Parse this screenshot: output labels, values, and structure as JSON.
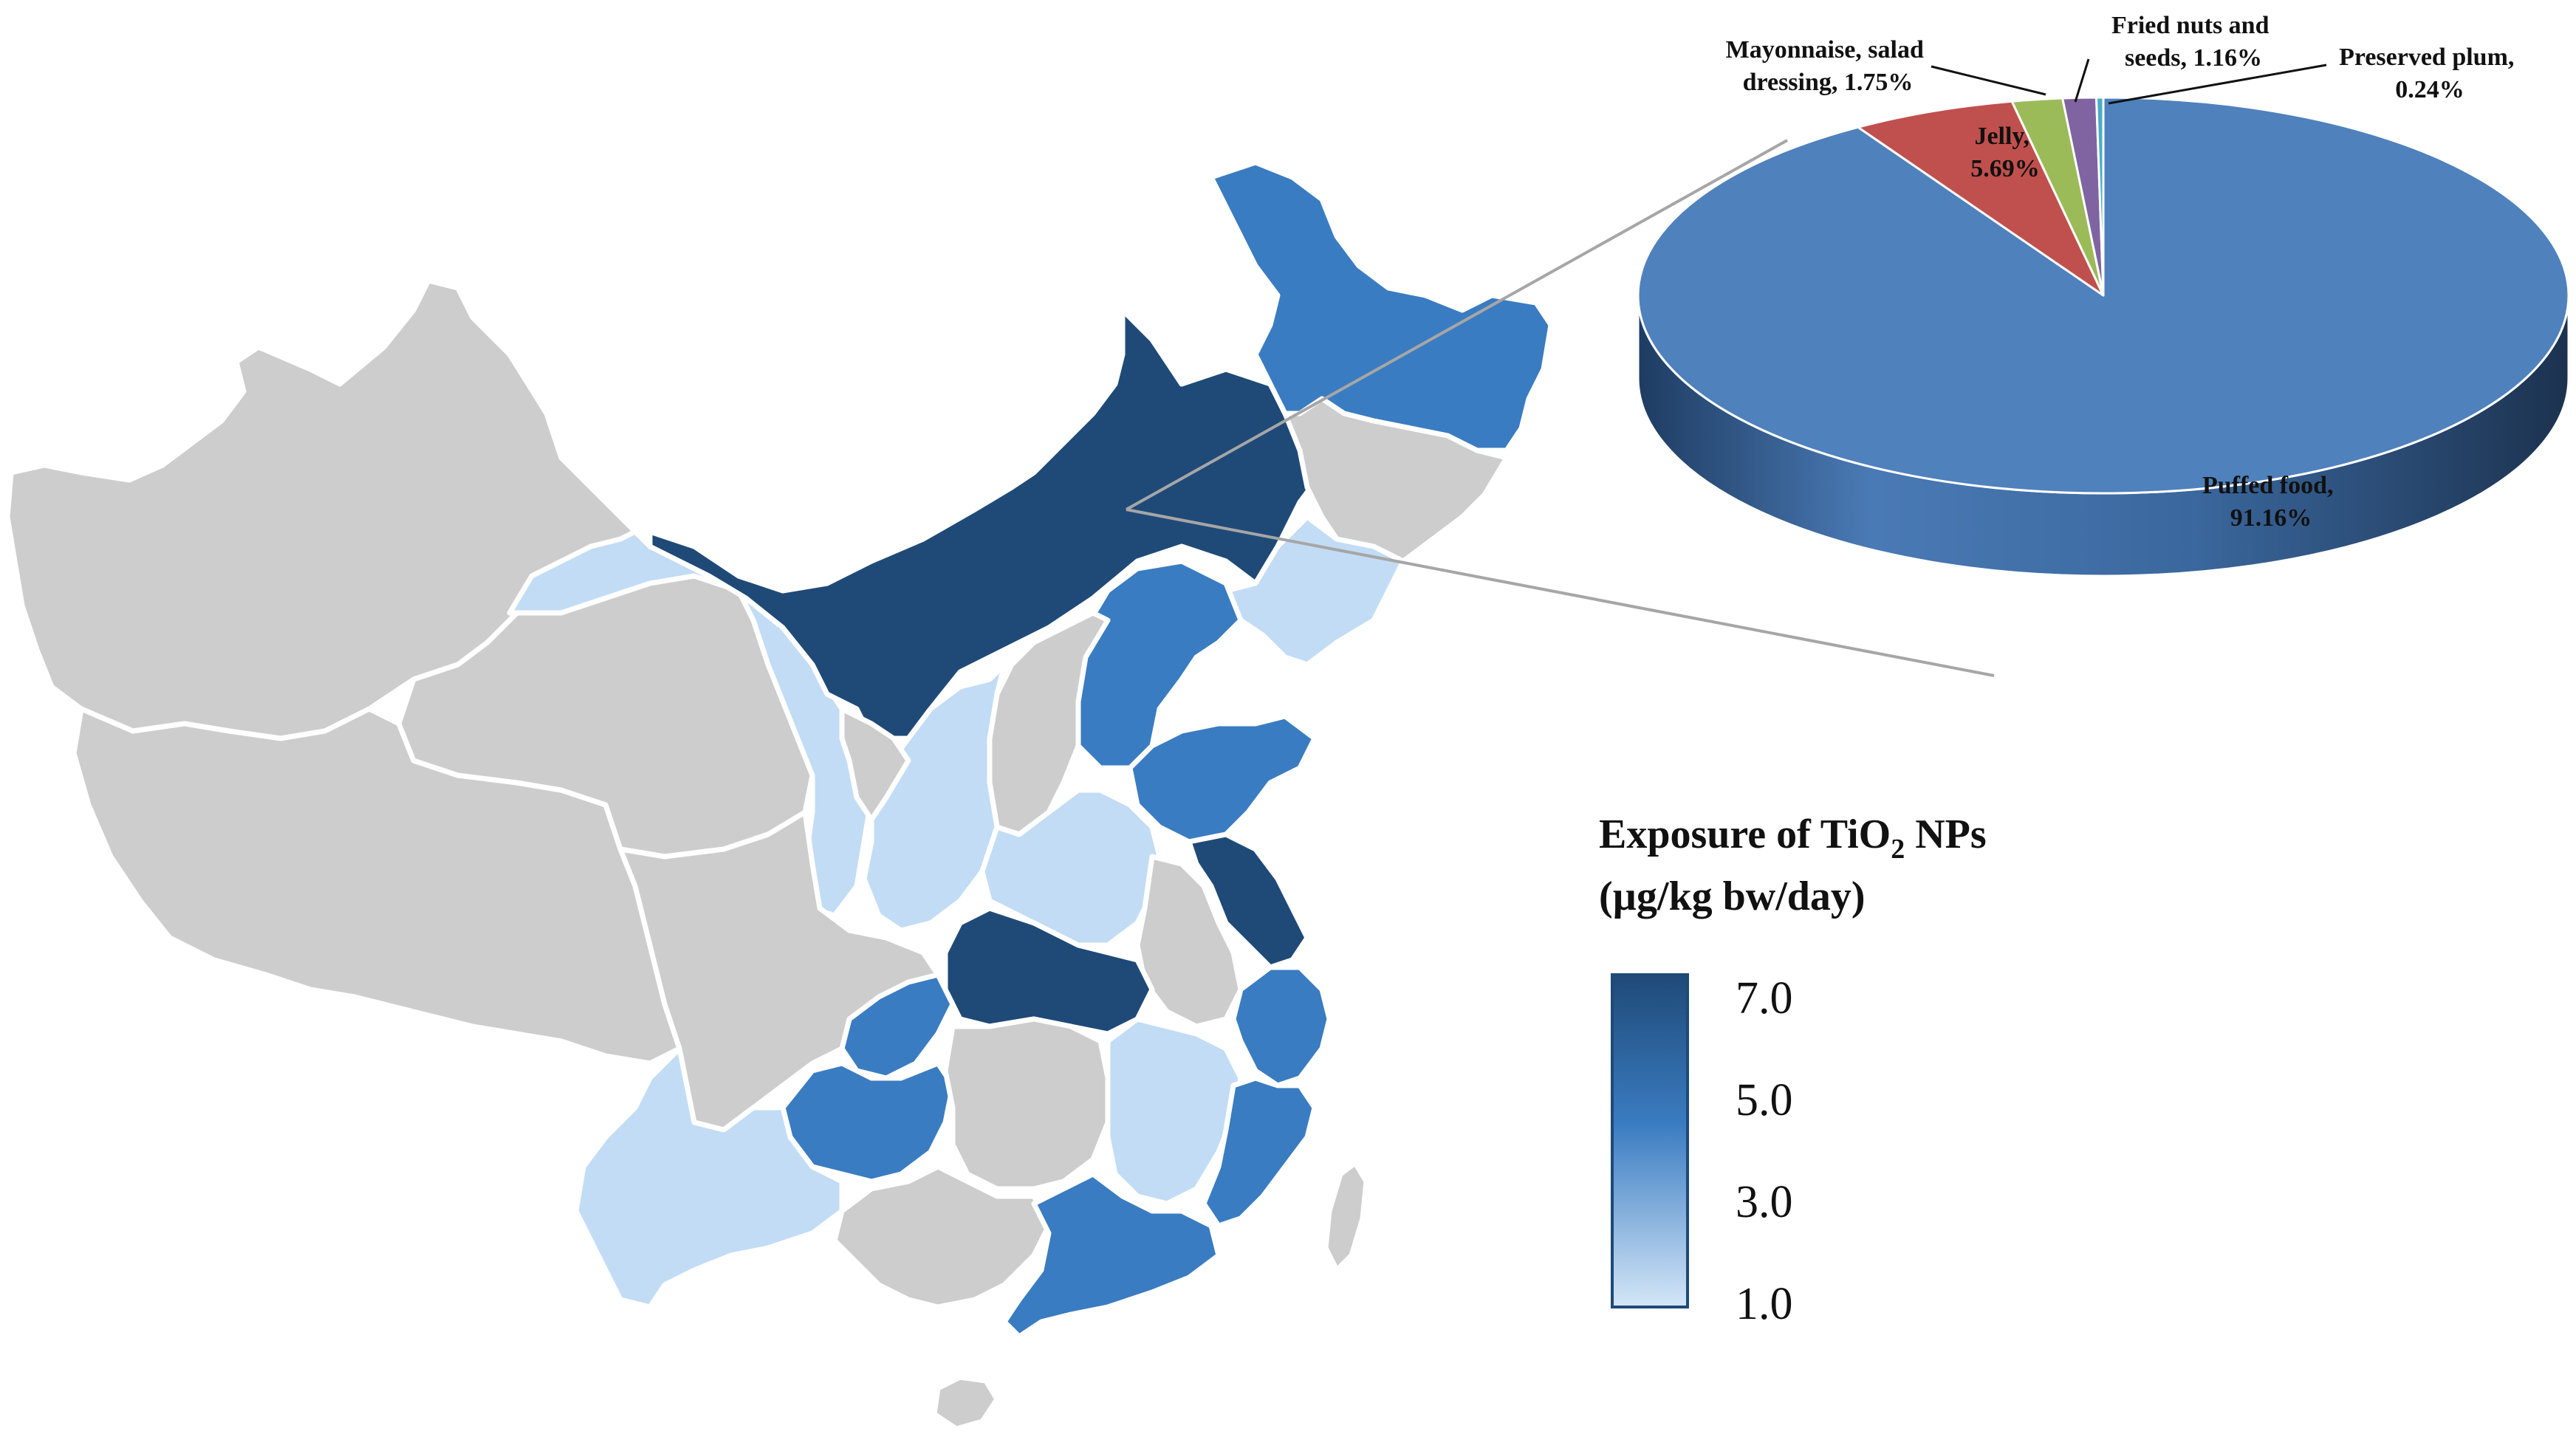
{
  "legend": {
    "title_line1_pre": "Exposure of TiO",
    "title_sub": "2",
    "title_line1_post": " NPs",
    "title_line2": "(µg/kg bw/day)",
    "ticks": [
      "7.0",
      "5.0",
      "3.0",
      "1.0"
    ],
    "colors": {
      "high": "#1f4a78",
      "mid": "#3a7cc1",
      "low": "#c2dcf5",
      "nodata": "#cdcdcd",
      "border": "#ffffff"
    }
  },
  "pie": {
    "slices": [
      {
        "name_l1": "Puffed food,",
        "name_l2": "91.16%",
        "value": 91.16,
        "color": "#4f81bd",
        "side": "#2a4d78"
      },
      {
        "name_l1": "Jelly,",
        "name_l2": "5.69%",
        "value": 5.69,
        "color": "#c0504d",
        "side": "#7c2f2d"
      },
      {
        "name_l1": "Mayonnaise, salad",
        "name_l2": "dressing, 1.75%",
        "value": 1.75,
        "color": "#9bbb59",
        "side": "#62792f"
      },
      {
        "name_l1": "Fried nuts and",
        "name_l2": "seeds, 1.16%",
        "value": 1.16,
        "color": "#8064a2",
        "side": "#4f3d66"
      },
      {
        "name_l1": "Preserved plum,",
        "name_l2": "0.24%",
        "value": 0.24,
        "color": "#4bacc6",
        "side": "#2c6d80"
      }
    ]
  },
  "map": {
    "provinces": [
      {
        "id": "xinjiang",
        "level": "nodata"
      },
      {
        "id": "tibet",
        "level": "nodata"
      },
      {
        "id": "qinghai",
        "level": "nodata"
      },
      {
        "id": "gansu",
        "level": "low"
      },
      {
        "id": "inner-mongolia",
        "level": "high"
      },
      {
        "id": "heilongjiang",
        "level": "mid"
      },
      {
        "id": "jilin",
        "level": "nodata"
      },
      {
        "id": "liaoning",
        "level": "low"
      },
      {
        "id": "hebei",
        "level": "mid"
      },
      {
        "id": "shanxi",
        "level": "nodata"
      },
      {
        "id": "shaanxi",
        "level": "low"
      },
      {
        "id": "ningxia",
        "level": "nodata"
      },
      {
        "id": "shandong",
        "level": "mid"
      },
      {
        "id": "henan",
        "level": "low"
      },
      {
        "id": "jiangsu",
        "level": "high"
      },
      {
        "id": "anhui",
        "level": "nodata"
      },
      {
        "id": "zhejiang",
        "level": "mid"
      },
      {
        "id": "hubei",
        "level": "high"
      },
      {
        "id": "chongqing",
        "level": "mid"
      },
      {
        "id": "sichuan",
        "level": "nodata"
      },
      {
        "id": "guizhou",
        "level": "mid"
      },
      {
        "id": "yunnan",
        "level": "low"
      },
      {
        "id": "hunan",
        "level": "nodata"
      },
      {
        "id": "jiangxi",
        "level": "low"
      },
      {
        "id": "fujian",
        "level": "mid"
      },
      {
        "id": "guangxi",
        "level": "nodata"
      },
      {
        "id": "guangdong",
        "level": "mid"
      },
      {
        "id": "hainan",
        "level": "nodata"
      },
      {
        "id": "taiwan",
        "level": "nodata"
      }
    ]
  }
}
